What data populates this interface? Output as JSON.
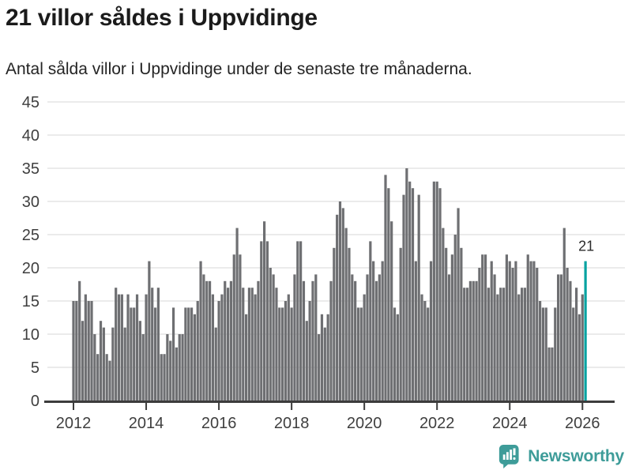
{
  "header": {
    "title": "21 villor såldes i Uppvidinge",
    "subtitle": "Antal sålda villor i Uppvidinge under de senaste tre månaderna."
  },
  "chart_data": {
    "type": "bar",
    "title": "21 villor såldes i Uppvidinge",
    "xlabel": "",
    "ylabel": "",
    "x_period_start": "2012-01",
    "x_period_end": "2026-02",
    "x_frequency": "monthly",
    "values": [
      15,
      15,
      18,
      12,
      16,
      15,
      15,
      10,
      7,
      12,
      11,
      7,
      6,
      11,
      17,
      16,
      16,
      11,
      16,
      14,
      14,
      16,
      12,
      10,
      16,
      21,
      17,
      14,
      17,
      7,
      7,
      10,
      9,
      14,
      8,
      10,
      10,
      14,
      14,
      14,
      13,
      15,
      21,
      19,
      18,
      18,
      16,
      11,
      15,
      16,
      18,
      17,
      18,
      22,
      26,
      22,
      17,
      13,
      17,
      17,
      16,
      18,
      24,
      27,
      24,
      20,
      19,
      17,
      14,
      14,
      15,
      16,
      14,
      19,
      24,
      24,
      18,
      12,
      15,
      18,
      19,
      10,
      13,
      11,
      13,
      18,
      23,
      28,
      30,
      29,
      26,
      23,
      19,
      18,
      14,
      14,
      16,
      19,
      24,
      21,
      18,
      19,
      21,
      34,
      32,
      27,
      14,
      13,
      23,
      31,
      35,
      33,
      32,
      21,
      31,
      16,
      15,
      14,
      21,
      33,
      33,
      32,
      26,
      23,
      19,
      22,
      25,
      29,
      23,
      17,
      17,
      18,
      18,
      18,
      20,
      22,
      22,
      17,
      21,
      19,
      16,
      17,
      17,
      22,
      21,
      20,
      21,
      16,
      17,
      17,
      22,
      21,
      21,
      20,
      15,
      14,
      14,
      8,
      8,
      14,
      19,
      19,
      26,
      20,
      18,
      14,
      17,
      13,
      16,
      21
    ],
    "highlight_index": 169,
    "highlight_label": "21",
    "ylim": [
      0,
      45
    ],
    "yticks": [
      0,
      5,
      10,
      15,
      20,
      25,
      30,
      35,
      40,
      45
    ],
    "xticks": [
      "2012",
      "2014",
      "2016",
      "2018",
      "2020",
      "2022",
      "2024",
      "2026"
    ],
    "xtick_interval_months": 24,
    "grid": true,
    "legend": "none",
    "colors": {
      "bar": "#6E6F72",
      "highlight": "#00A2A0",
      "grid": "#E8E8E8",
      "axis": "#3C3C3C",
      "tick_text": "#3F3F3F",
      "annotation_text": "#2B2B2B"
    }
  },
  "branding": {
    "name": "Newsworthy",
    "color": "#3E9C99",
    "icon": "newsworthy-chart-bubble-icon"
  }
}
